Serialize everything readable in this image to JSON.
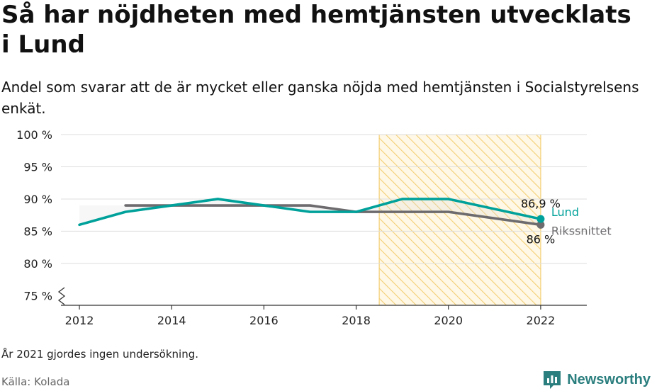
{
  "header": {
    "title": "Så har nöjdheten med hemtjänsten utvecklats i Lund",
    "subtitle": "Andel som svarar att de är mycket eller ganska nöjda med hemtjänsten i Socialstyrelsens enkät."
  },
  "footer": {
    "note": "År 2021 gjordes ingen undersökning.",
    "source": "Källa: Kolada",
    "brand": "Newsworthy"
  },
  "chart_data": {
    "type": "line",
    "title": "Så har nöjdheten med hemtjänsten utvecklats i Lund",
    "subtitle": "Andel som svarar att de är mycket eller ganska nöjda med hemtjänsten i Socialstyrelsens enkät.",
    "xlabel": "",
    "ylabel": "",
    "xlim": [
      2011.6,
      2023.0
    ],
    "ylim": [
      73.5,
      100
    ],
    "x_ticks": [
      2012,
      2014,
      2016,
      2018,
      2020,
      2022
    ],
    "x_tick_labels": [
      "2012",
      "2014",
      "2016",
      "2018",
      "2020",
      "2022"
    ],
    "y_ticks": [
      75,
      80,
      85,
      90,
      95,
      100
    ],
    "y_tick_labels": [
      "75 %",
      "80 %",
      "85 %",
      "90 %",
      "95 %",
      "100 %"
    ],
    "grid": true,
    "axis_break": true,
    "highlight_range": [
      2018.5,
      2022
    ],
    "series": [
      {
        "name": "Lund",
        "color": "#00a19a",
        "x": [
          2012,
          2013,
          2014,
          2015,
          2016,
          2017,
          2018,
          2019,
          2020,
          2022
        ],
        "y": [
          86,
          88,
          89,
          90,
          89,
          88,
          88,
          90,
          90,
          86.9
        ],
        "end_label": "86,9 %"
      },
      {
        "name": "Rikssnittet",
        "color": "#6d6b6e",
        "x": [
          2013,
          2014,
          2015,
          2016,
          2017,
          2018,
          2019,
          2020,
          2022
        ],
        "y": [
          89,
          89,
          89,
          89,
          89,
          88,
          88,
          88,
          86
        ],
        "end_label": "86 %"
      }
    ]
  }
}
